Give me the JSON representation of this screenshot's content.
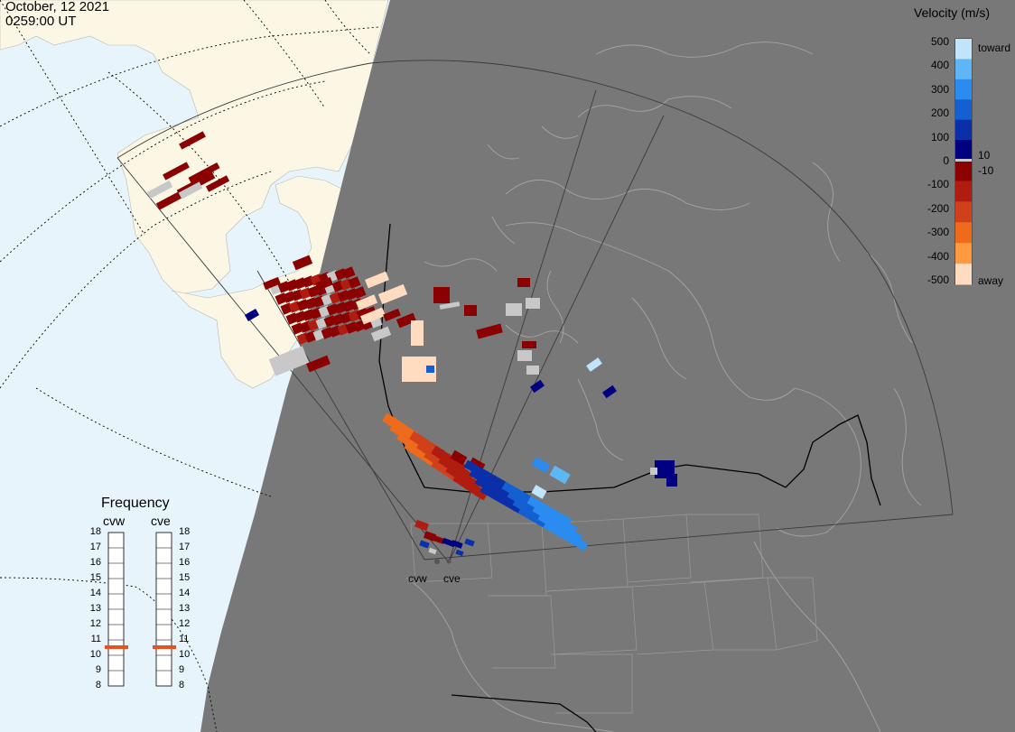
{
  "header": {
    "date": "October, 12 2021",
    "time": "0259:00 UT"
  },
  "velocity_scale": {
    "title": "Velocity (m/s)",
    "ticks": [
      "500",
      "400",
      "300",
      "200",
      "100",
      "0",
      "-100",
      "-200",
      "-300",
      "-400",
      "-500"
    ],
    "toward_label": "toward",
    "away_label": "away",
    "threshold_pos": "10",
    "threshold_neg": "-10",
    "colors_toward": [
      "#000080",
      "#0a2fa8",
      "#1560d0",
      "#2a8cf0",
      "#5fb6f5",
      "#c0e4fa"
    ],
    "colors_away": [
      "#8b0000",
      "#b01c10",
      "#d0401a",
      "#ee6b1c",
      "#ff9a40",
      "#ffdcc0"
    ],
    "ground_scatter_color": "#c8c8c8"
  },
  "frequency_panel": {
    "title": "Frequency",
    "radars": [
      {
        "name": "cvw",
        "current_mhz": 10.8
      },
      {
        "name": "cve",
        "current_mhz": 10.8
      }
    ],
    "scale": [
      "18",
      "17",
      "16",
      "15",
      "14",
      "13",
      "12",
      "11",
      "10",
      "9",
      "8"
    ],
    "marker_color": "#e85020"
  },
  "radar_sites": [
    {
      "code": "cvw"
    },
    {
      "code": "cve"
    }
  ],
  "map_colors": {
    "ocean": "#e8f4fc",
    "land_daylight": "#fbf7e4",
    "night": "#787878",
    "coastline": "#a8a8a8",
    "border": "#000000"
  }
}
